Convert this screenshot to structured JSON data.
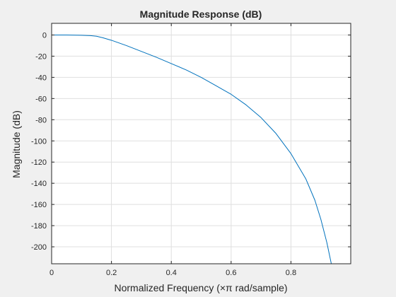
{
  "chart_data": {
    "type": "line",
    "title": "Magnitude Response (dB)",
    "xlabel": "Normalized Frequency (×π rad/sample)",
    "ylabel": "Magnitude (dB)",
    "xlim": [
      0,
      0.9999
    ],
    "ylim": [
      -216,
      11
    ],
    "xticks": [
      0,
      0.2,
      0.4,
      0.6,
      0.8
    ],
    "xtick_labels": [
      "0",
      "0.2",
      "0.4",
      "0.6",
      "0.8"
    ],
    "yticks": [
      0,
      -20,
      -40,
      -60,
      -80,
      -100,
      -120,
      -140,
      -160,
      -180,
      -200
    ],
    "ytick_labels": [
      "0",
      "-20",
      "-40",
      "-60",
      "-80",
      "-100",
      "-120",
      "-140",
      "-160",
      "-180",
      "-200"
    ],
    "grid": true,
    "series": [
      {
        "color": "#0072bd",
        "x": [
          0,
          0.05,
          0.1,
          0.13,
          0.15,
          0.17,
          0.2,
          0.25,
          0.3,
          0.35,
          0.4,
          0.45,
          0.5,
          0.55,
          0.6,
          0.65,
          0.7,
          0.75,
          0.8,
          0.85,
          0.88,
          0.9,
          0.92,
          0.935
        ],
        "y": [
          0,
          0,
          -0.3,
          -0.6,
          -1.2,
          -2.5,
          -5,
          -10,
          -15.5,
          -21,
          -27,
          -33,
          -40,
          -48,
          -56,
          -66,
          -78,
          -93,
          -112,
          -136,
          -156,
          -174,
          -196,
          -216
        ]
      }
    ]
  },
  "figure": {
    "background": "#f0f0f0",
    "axes_background": "#ffffff",
    "grid_color": "#dfdfdf",
    "axis_color": "#262626"
  }
}
